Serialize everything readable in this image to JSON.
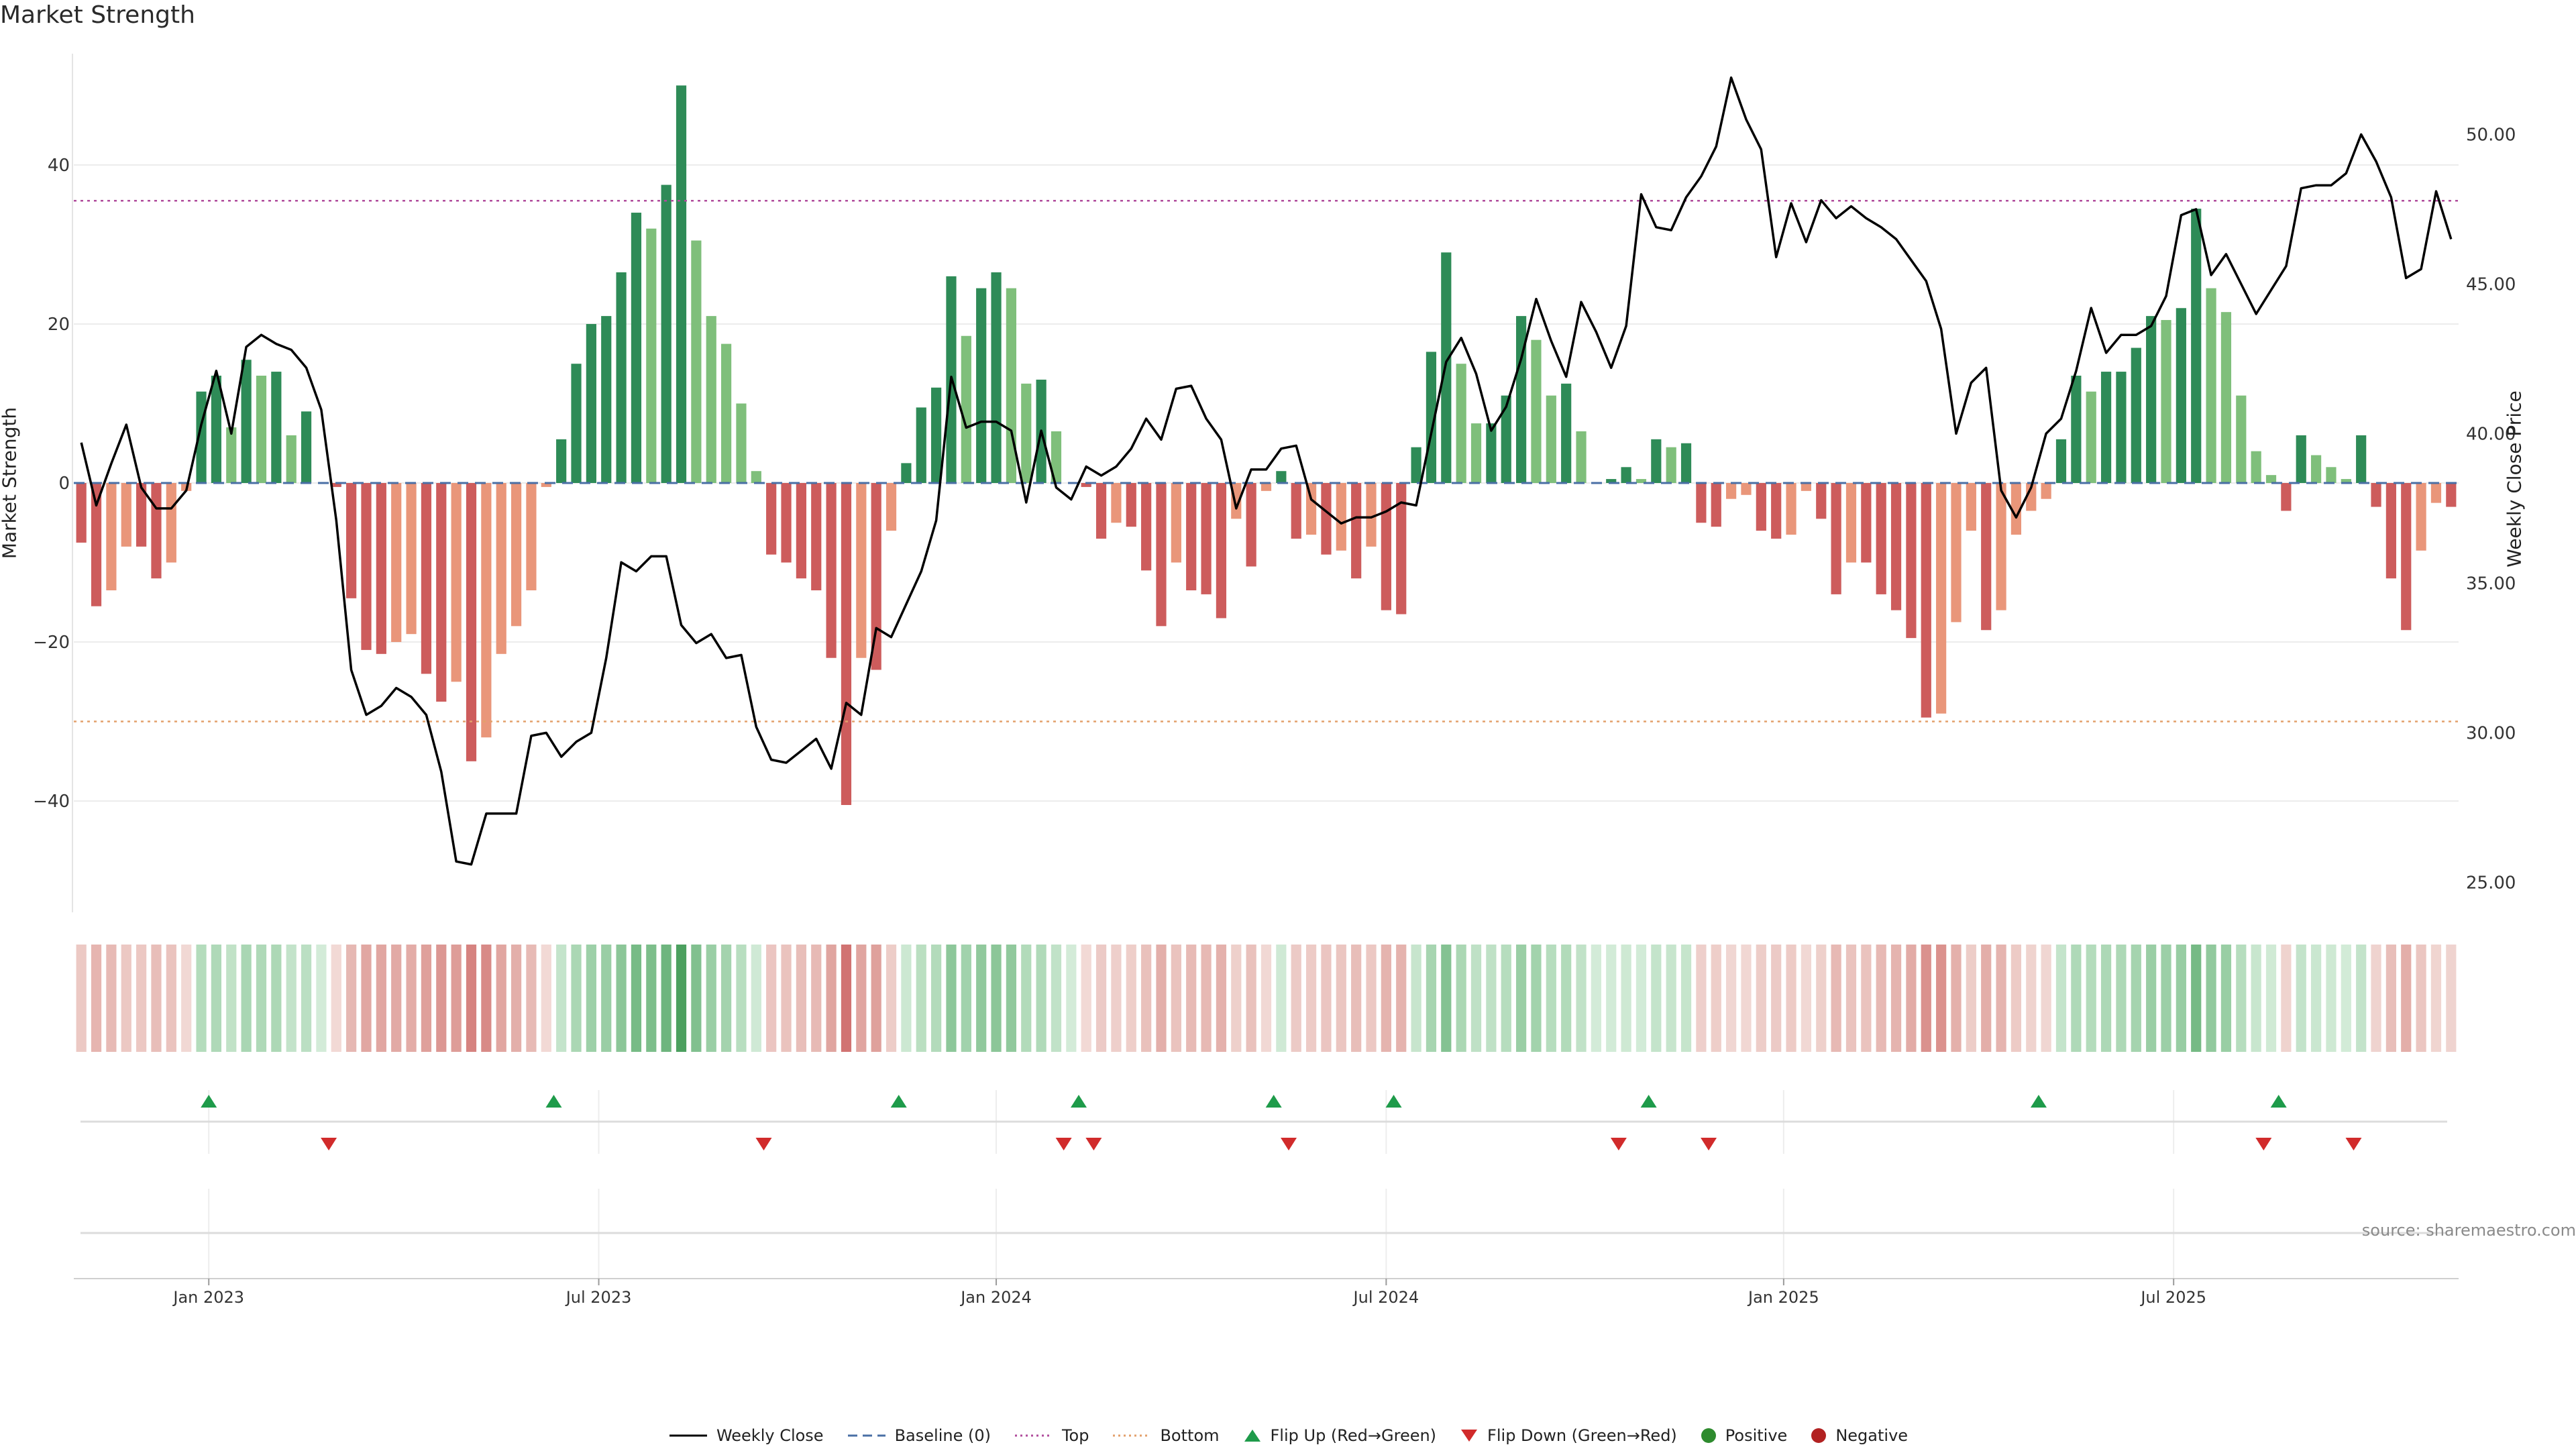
{
  "title": "Market Strength",
  "source": "source: sharemaestro.com",
  "colors": {
    "pos_dark": "#2e8b57",
    "pos_light": "#7fbf7b",
    "neg_dark": "#cd5c5c",
    "neg_light": "#e9967a",
    "price": "#000000",
    "baseline": "#4a6fa5",
    "top": "#b04c9c",
    "bottom": "#e3a06b",
    "flip_up": "#1e9b4a",
    "flip_down": "#d12b2b",
    "positive": "#2e8b2e",
    "negative": "#b22222"
  },
  "legend": [
    {
      "label": "Weekly Close",
      "icon": "line-solid"
    },
    {
      "label": "Baseline (0)",
      "icon": "line-dashed"
    },
    {
      "label": "Top",
      "icon": "line-dotted-top"
    },
    {
      "label": "Bottom",
      "icon": "line-dotted-bottom"
    },
    {
      "label": "Flip Up (Red→Green)",
      "icon": "triangle-up"
    },
    {
      "label": "Flip Down (Green→Red)",
      "icon": "triangle-down"
    },
    {
      "label": "Positive",
      "icon": "dot-green"
    },
    {
      "label": "Negative",
      "icon": "dot-red"
    }
  ],
  "chart_data": {
    "type": "bar",
    "ylabel": "Market Strength",
    "y2label": "Weekly Close Price",
    "ylim": [
      -54,
      54
    ],
    "y2lim": [
      24,
      52.7
    ],
    "y_ticks": [
      -40,
      -20,
      0,
      20,
      40
    ],
    "y2_ticks": [
      "25.00",
      "30.00",
      "35.00",
      "40.00",
      "45.00",
      "50.00"
    ],
    "x_ticks": [
      "Jan 2023",
      "Jul 2023",
      "Jan 2024",
      "Jul 2024",
      "Jan 2025",
      "Jul 2025"
    ],
    "x_tick_index": [
      8.5,
      34.5,
      61,
      87,
      113.5,
      139.5
    ],
    "top_level": 35.5,
    "bottom_level": -30,
    "grid": true,
    "legend_position": "bottom-center",
    "strength": [
      -7.5,
      -15.5,
      -13.5,
      -8,
      -8,
      -12,
      -10,
      -1,
      11.5,
      13.5,
      7,
      15.5,
      13.5,
      14,
      6,
      9,
      0,
      -0.5,
      -14.5,
      -21,
      -21.5,
      -20,
      -19,
      -24,
      -27.5,
      -25,
      -35,
      -32,
      -21.5,
      -18,
      -13.5,
      -0.5,
      5.5,
      15,
      20,
      21,
      26.5,
      34,
      32,
      37.5,
      50,
      30.5,
      21,
      17.5,
      10,
      1.5,
      -9,
      -10,
      -12,
      -13.5,
      -22,
      -40.5,
      -22,
      -23.5,
      -6,
      2.5,
      9.5,
      12,
      26,
      18.5,
      24.5,
      26.5,
      24.5,
      12.5,
      13,
      6.5,
      0,
      -0.5,
      -7,
      -5,
      -5.5,
      -11,
      -18,
      -10,
      -13.5,
      -14,
      -17,
      -4.5,
      -10.5,
      -1,
      1.5,
      -7,
      -6.5,
      -9,
      -8.5,
      -12,
      -8,
      -16,
      -16.5,
      4.5,
      16.5,
      29,
      15,
      7.5,
      7.5,
      11,
      21,
      18,
      11,
      12.5,
      6.5,
      0,
      0.5,
      2,
      0.5,
      5.5,
      4.5,
      5,
      -5,
      -5.5,
      -2,
      -1.5,
      -6,
      -7,
      -6.5,
      -1,
      -4.5,
      -14,
      -10,
      -10,
      -14,
      -16,
      -19.5,
      -29.5,
      -29,
      -17.5,
      -6,
      -18.5,
      -16,
      -6.5,
      -3.5,
      -2,
      5.5,
      13.5,
      11.5,
      14,
      14,
      17,
      21,
      20.5,
      22,
      34.5,
      24.5,
      21.5,
      11,
      4,
      1,
      -3.5,
      6,
      3.5,
      2,
      0.5,
      6,
      -3,
      -12,
      -18.5,
      -8.5,
      -2.5,
      -3
    ],
    "weekly_close": [
      39.7,
      37.6,
      39.0,
      40.3,
      38.2,
      37.5,
      37.5,
      38.1,
      40.3,
      42.1,
      40.0,
      42.9,
      43.3,
      43.0,
      42.8,
      42.2,
      40.8,
      37.1,
      32.1,
      30.6,
      30.9,
      31.5,
      31.2,
      30.6,
      28.7,
      25.7,
      25.6,
      27.3,
      27.3,
      27.3,
      29.9,
      30.0,
      29.2,
      29.7,
      30.0,
      32.5,
      35.7,
      35.4,
      35.9,
      35.9,
      33.6,
      33.0,
      33.3,
      32.5,
      32.6,
      30.2,
      29.1,
      29.0,
      29.4,
      29.8,
      28.8,
      31.0,
      30.6,
      33.5,
      33.2,
      34.3,
      35.4,
      37.1,
      41.9,
      40.2,
      40.4,
      40.4,
      40.1,
      37.7,
      40.1,
      38.2,
      37.8,
      38.9,
      38.6,
      38.9,
      39.5,
      40.5,
      39.8,
      41.5,
      41.6,
      40.5,
      39.8,
      37.5,
      38.8,
      38.8,
      39.5,
      39.6,
      37.8,
      37.4,
      37.0,
      37.2,
      37.2,
      37.4,
      37.7,
      37.6,
      40.0,
      42.4,
      43.2,
      42.0,
      40.1,
      40.9,
      42.5,
      44.5,
      43.1,
      41.9,
      44.4,
      43.4,
      42.2,
      43.6,
      48.0,
      46.9,
      46.8,
      47.9,
      48.6,
      49.6,
      51.9,
      50.5,
      49.5,
      45.9,
      47.7,
      46.4,
      47.8,
      47.2,
      47.6,
      47.2,
      46.9,
      46.5,
      45.8,
      45.1,
      43.5,
      40.0,
      41.7,
      42.2,
      38.1,
      37.2,
      38.2,
      40.0,
      40.5,
      42.1,
      44.2,
      42.7,
      43.3,
      43.3,
      43.6,
      44.6,
      47.3,
      47.5,
      45.3,
      46.0,
      45.0,
      44.0,
      44.8,
      45.6,
      48.2,
      48.3,
      48.3,
      48.7,
      50.0,
      49.1,
      47.9,
      45.2,
      45.5,
      48.1,
      46.5
    ],
    "flip_up_index": [
      8.5,
      31.5,
      54.5,
      66.5,
      79.5,
      87.5,
      104.5,
      130.5,
      146.5
    ],
    "flip_down_index": [
      16.5,
      45.5,
      65.5,
      67.5,
      80.5,
      102.5,
      108.5,
      145.5,
      151.5
    ]
  }
}
